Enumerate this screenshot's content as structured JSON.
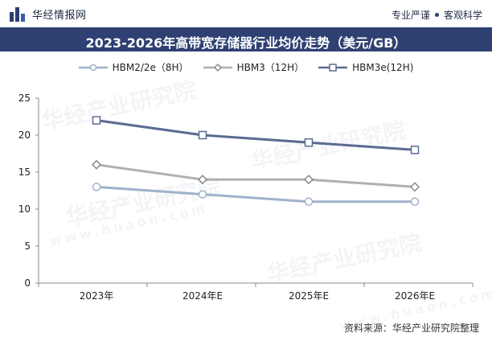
{
  "brand": {
    "name": "华经情报网"
  },
  "tagline": {
    "text1": "专业严谨",
    "text2": "客观科学"
  },
  "title": "2023-2026年高带宽存储器行业均价走势（美元/GB）",
  "source": "资料来源：华经产业研究院整理",
  "colors": {
    "header_bg": "#2f4173",
    "series1": "#9fb1cc",
    "series2": "#b0b0b0",
    "series3": "#5b6b93"
  },
  "chart_data": {
    "type": "line",
    "categories": [
      "2023年",
      "2024年E",
      "2025年E",
      "2026年E"
    ],
    "ylim": [
      0,
      25
    ],
    "yticks": [
      0,
      5,
      10,
      15,
      20,
      25
    ],
    "series": [
      {
        "name": "HBM2/2e（8H）",
        "values": [
          13,
          12,
          11,
          11
        ],
        "marker": "circle"
      },
      {
        "name": "HBM3（12H）",
        "values": [
          16,
          14,
          14,
          13
        ],
        "marker": "diamond"
      },
      {
        "name": "HBM3e(12H)",
        "values": [
          22,
          20,
          19,
          18
        ],
        "marker": "square"
      }
    ],
    "legend_position": "top-center",
    "grid": false
  },
  "watermarks": [
    "华经产业研究院",
    "www.huaon.com"
  ]
}
